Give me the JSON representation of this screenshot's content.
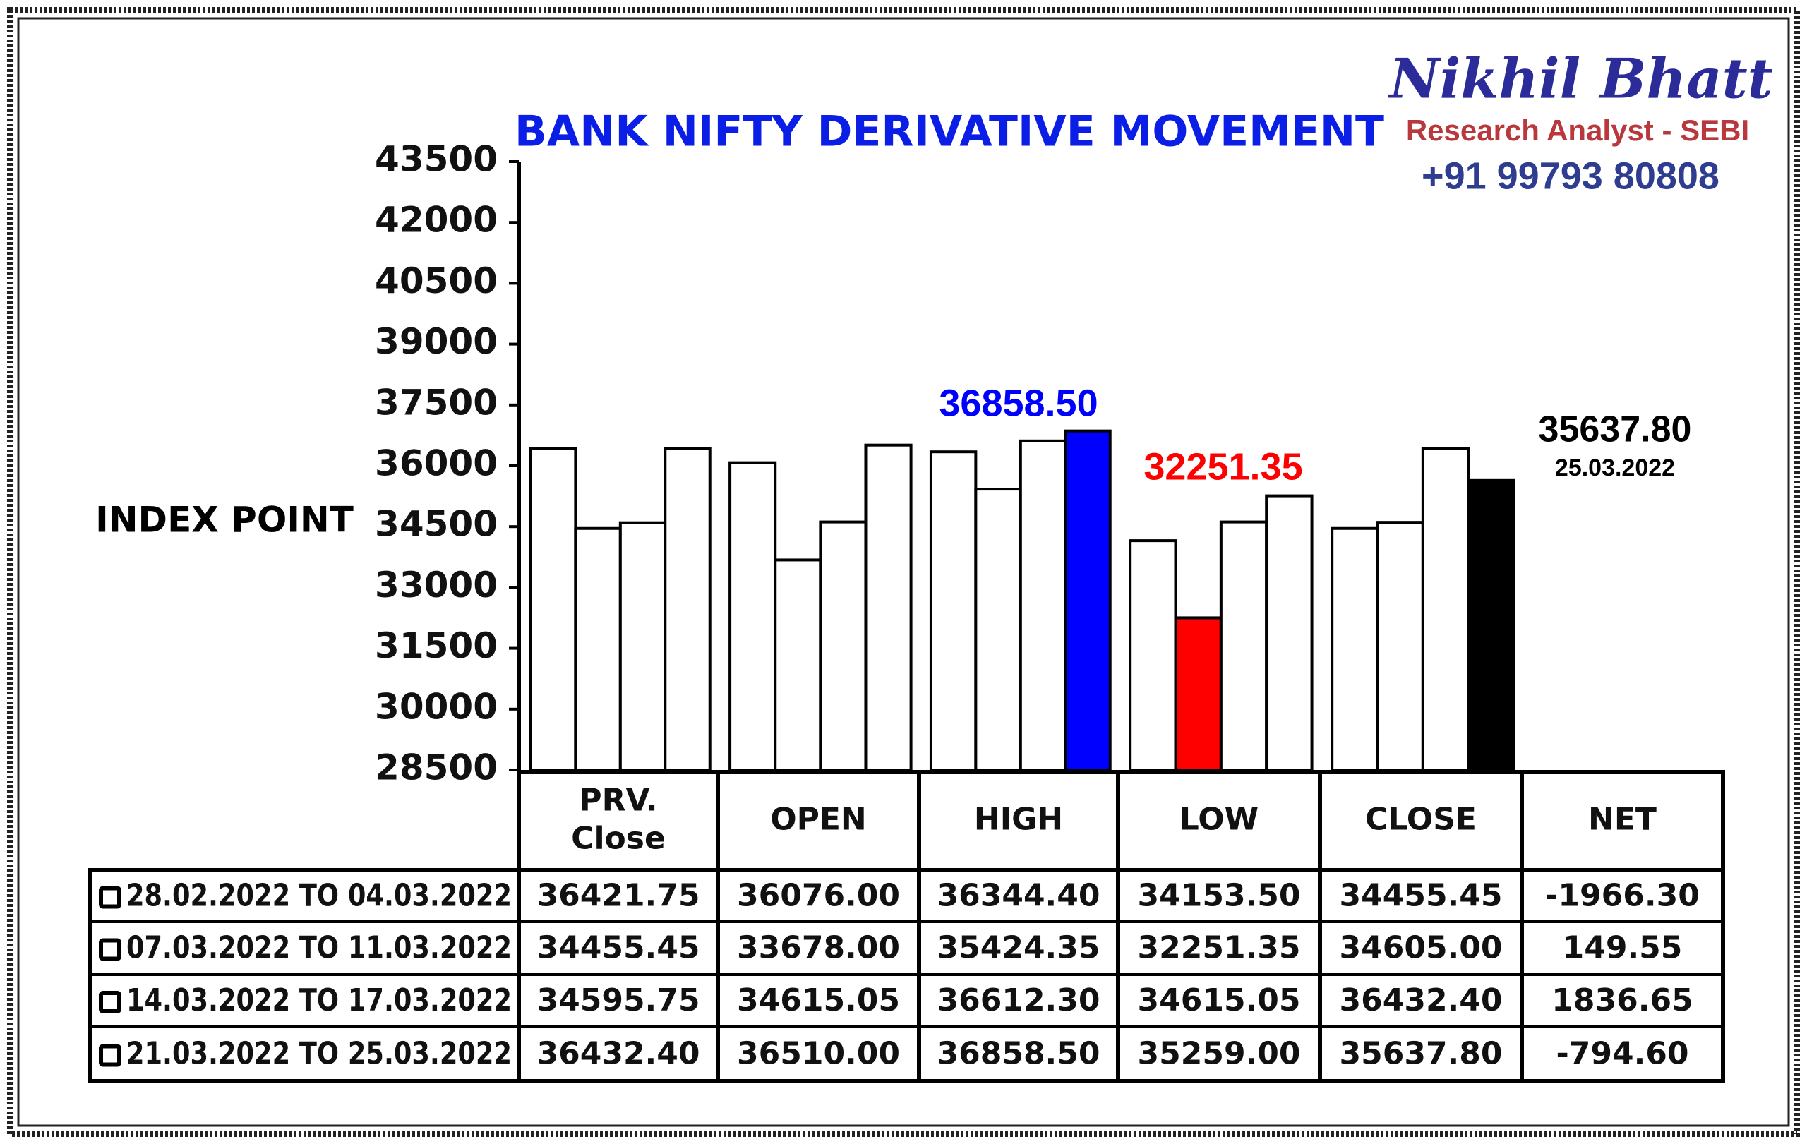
{
  "chart_data": {
    "type": "bar",
    "title": "BANK NIFTY DERIVATIVE MOVEMENT",
    "y_label": "INDEX POINT",
    "categories": [
      "PRV. Close",
      "OPEN",
      "HIGH",
      "LOW",
      "CLOSE"
    ],
    "ylim": [
      28500,
      43500
    ],
    "yticks": [
      28500,
      30000,
      31500,
      33000,
      34500,
      36000,
      37500,
      39000,
      40500,
      42000,
      43500
    ],
    "series": [
      {
        "name": "28.02.2022 TO 04.03.2022",
        "colors": [
          "#ffffff",
          "#ffffff",
          "#ffffff",
          "#ffffff",
          "#ffffff"
        ],
        "values": [
          36421.75,
          36076,
          36344.4,
          34153.5,
          34455.45
        ],
        "value_labels": [
          "36421.75",
          "36076.00",
          "36344.40",
          "34153.50",
          "34455.45"
        ]
      },
      {
        "name": "07.03.2022 TO 11.03.2022",
        "colors": [
          "#ffffff",
          "#ffffff",
          "#ffffff",
          "#ff0000",
          "#ffffff"
        ],
        "values": [
          34455.45,
          33678,
          35424.35,
          32251.35,
          34605
        ],
        "value_labels": [
          "34455.45",
          "33678.00",
          "35424.35",
          "32251.35",
          "34605.00"
        ]
      },
      {
        "name": "14.03.2022 TO 17.03.2022",
        "colors": [
          "#ffffff",
          "#ffffff",
          "#ffffff",
          "#ffffff",
          "#ffffff"
        ],
        "values": [
          34595.75,
          34615.05,
          36612.3,
          34615.05,
          36432.4
        ],
        "value_labels": [
          "34595.75",
          "34615.05",
          "36612.30",
          "34615.05",
          "36432.40"
        ]
      },
      {
        "name": "21.03.2022 TO 25.03.2022",
        "colors": [
          "#ffffff",
          "#ffffff",
          "#0000ff",
          "#ffffff",
          "#000000"
        ],
        "values": [
          36432.4,
          36510,
          36858.5,
          35259,
          35637.8
        ],
        "value_labels": [
          "36432.40",
          "36510.00",
          "36858.50",
          "35259.00",
          "35637.80"
        ]
      }
    ],
    "net_label": "NET",
    "net_values": [
      -1966.3,
      149.55,
      1836.65,
      -794.6
    ],
    "net_value_labels": [
      "-1966.30",
      "149.55",
      "1836.65",
      "-794.60"
    ],
    "annotations": [
      {
        "text": "36858.50",
        "color": "#0000ff"
      },
      {
        "text": "32251.35",
        "color": "#ff0000"
      },
      {
        "text": "35637.80",
        "color": "#000000"
      },
      {
        "text": "25.03.2022",
        "color": "#000000"
      }
    ]
  },
  "branding": {
    "name": "Nikhil Bhatt",
    "role": "Research Analyst - SEBI",
    "phone": "+91 99793 80808"
  }
}
